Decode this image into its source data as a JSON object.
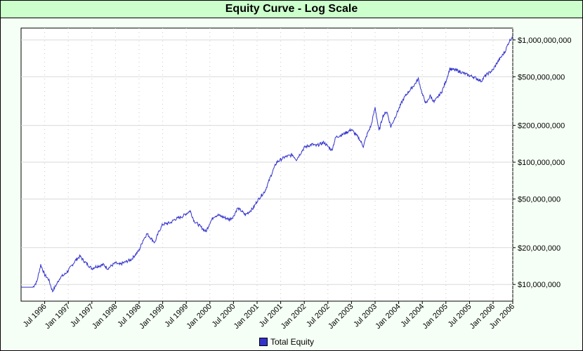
{
  "chart_data": {
    "type": "line",
    "title": "Equity Curve - Log Scale",
    "xlabel": "",
    "ylabel": "",
    "y_scale": "log",
    "ylim": [
      7300000,
      1250000000
    ],
    "y_ticks": [
      10000000,
      20000000,
      50000000,
      100000000,
      200000000,
      500000000,
      1000000000
    ],
    "y_tick_labels": [
      "$10,000,000",
      "$20,000,000",
      "$50,000,000",
      "$100,000,000",
      "$200,000,000",
      "$500,000,000",
      "$1,000,000,000"
    ],
    "x_tick_labels": [
      "Jul 1996",
      "Jan 1997",
      "Jul 1997",
      "Jan 1998",
      "Jul 1998",
      "Jan 1999",
      "Jul 1999",
      "Jan 2000",
      "Jul 2000",
      "Jan 2001",
      "Jul 2001",
      "Jan 2002",
      "Jul 2002",
      "Jan 2003",
      "Jul 2003",
      "Jan 2004",
      "Jul 2004",
      "Jan 2005",
      "Jul 2005",
      "Jan 2006",
      "Jun 2006"
    ],
    "grid": true,
    "legend_position": "bottom",
    "series": [
      {
        "name": "Total Equity",
        "color": "#3333cc",
        "x": [
          "Jan 1996",
          "Mar 1996",
          "Apr 1996",
          "May 1996",
          "Jun 1996",
          "Jul 1996",
          "Aug 1996",
          "Sep 1996",
          "Oct 1996",
          "Nov 1996",
          "Dec 1996",
          "Jan 1997",
          "Mar 1997",
          "Apr 1997",
          "May 1997",
          "Jul 1997",
          "Aug 1997",
          "Oct 1997",
          "Nov 1997",
          "Jan 1998",
          "Feb 1998",
          "Apr 1998",
          "May 1998",
          "Jul 1998",
          "Aug 1998",
          "Sep 1998",
          "Nov 1998",
          "Dec 1998",
          "Jan 1999",
          "Mar 1999",
          "Apr 1999",
          "Jun 1999",
          "Jul 1999",
          "Aug 1999",
          "Sep 1999",
          "Oct 1999",
          "Dec 1999",
          "Jan 2000",
          "Feb 2000",
          "Mar 2000",
          "Jun 2000",
          "Jul 2000",
          "Aug 2000",
          "Sep 2000",
          "Oct 2000",
          "Dec 2000",
          "Jan 2001",
          "Feb 2001",
          "Mar 2001",
          "Apr 2001",
          "May 2001",
          "Jun 2001",
          "Aug 2001",
          "Oct 2001",
          "Nov 2001",
          "Jan 2002",
          "Mar 2002",
          "Apr 2002",
          "Jun 2002",
          "Aug 2002",
          "Sep 2002",
          "Nov 2002",
          "Jan 2003",
          "Mar 2003",
          "Apr 2003",
          "May 2003",
          "Jun 2003",
          "Jul 2003",
          "Aug 2003",
          "Sep 2003",
          "Oct 2003",
          "Nov 2003",
          "Dec 2003",
          "Feb 2004",
          "Mar 2004",
          "May 2004",
          "Jun 2004",
          "Jul 2004",
          "Aug 2004",
          "Sep 2004",
          "Oct 2004",
          "Dec 2004",
          "Jan 2005",
          "Feb 2005",
          "Apr 2005",
          "Jul 2005",
          "Aug 2005",
          "Oct 2005",
          "Nov 2005",
          "Jan 2006",
          "Feb 2006",
          "Apr 2006",
          "May 2006",
          "Jun 2006"
        ],
        "values": [
          9500000,
          9500000,
          9500000,
          10500000,
          14500000,
          12000000,
          11000000,
          8800000,
          10000000,
          11500000,
          12000000,
          13000000,
          16000000,
          17000000,
          15500000,
          13500000,
          14000000,
          14500000,
          13500000,
          15000000,
          14500000,
          15500000,
          16000000,
          19000000,
          23000000,
          26000000,
          22000000,
          27000000,
          31000000,
          32000000,
          34000000,
          36000000,
          38000000,
          40000000,
          33000000,
          31000000,
          27000000,
          32000000,
          36000000,
          37000000,
          34000000,
          36000000,
          42000000,
          40000000,
          37000000,
          42000000,
          48000000,
          53000000,
          58000000,
          70000000,
          85000000,
          100000000,
          110000000,
          115000000,
          105000000,
          132000000,
          140000000,
          136000000,
          145000000,
          125000000,
          160000000,
          170000000,
          185000000,
          155000000,
          135000000,
          170000000,
          200000000,
          280000000,
          180000000,
          240000000,
          260000000,
          195000000,
          230000000,
          320000000,
          360000000,
          430000000,
          480000000,
          360000000,
          300000000,
          350000000,
          310000000,
          380000000,
          460000000,
          580000000,
          560000000,
          510000000,
          500000000,
          460000000,
          510000000,
          570000000,
          650000000,
          800000000,
          960000000,
          1080000000
        ]
      }
    ]
  }
}
